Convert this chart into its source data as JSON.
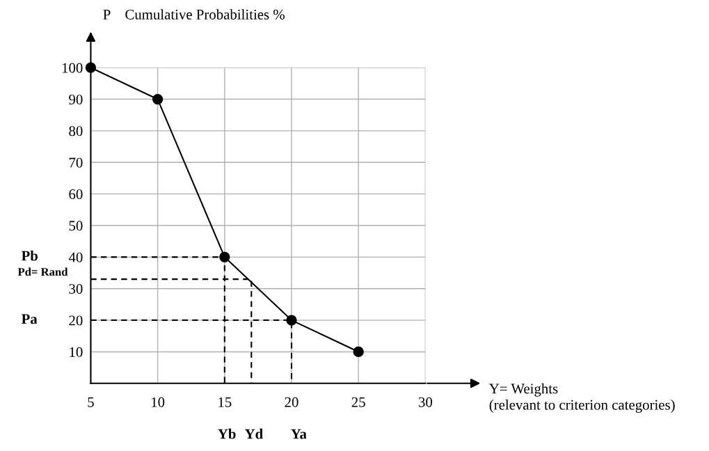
{
  "chart_data": {
    "type": "line",
    "title": "P    Cumulative Probabilities %",
    "xlabel": "Y= Weights\n(relevant to criterion categories)",
    "x": [
      5,
      10,
      15,
      20,
      25
    ],
    "series": [
      {
        "color": "#000000",
        "values": [
          100,
          90,
          40,
          20,
          10
        ],
        "marker": "circle",
        "line_style": "solid"
      },
      {
        "type": "line",
        "color": "#000000",
        "x": [
          5,
          15,
          15
        ],
        "values": [
          40,
          40,
          0
        ],
        "marker": "none",
        "line_style": "dashed"
      },
      {
        "type": "line",
        "color": "#000000",
        "x": [
          5,
          17,
          17
        ],
        "values": [
          33,
          33,
          0
        ],
        "marker": "none",
        "line_style": "dashed"
      },
      {
        "type": "line",
        "color": "#000000",
        "x": [
          5,
          20,
          20
        ],
        "values": [
          20,
          20,
          0
        ],
        "marker": "none",
        "line_style": "dashed"
      }
    ],
    "annotations": [
      "Pb",
      "Pd= Rand",
      "Pa",
      "Yb",
      "Yd",
      "Ya"
    ],
    "xlim": [
      5,
      30
    ],
    "xticks": [
      5,
      10,
      15,
      20,
      25,
      30
    ],
    "ylim": [
      0,
      100
    ],
    "yticks": [
      {
        "value": 0,
        "label": null
      },
      10,
      20,
      30,
      40,
      50,
      60,
      70,
      80,
      90,
      100
    ],
    "grid": true,
    "legend": false
  }
}
